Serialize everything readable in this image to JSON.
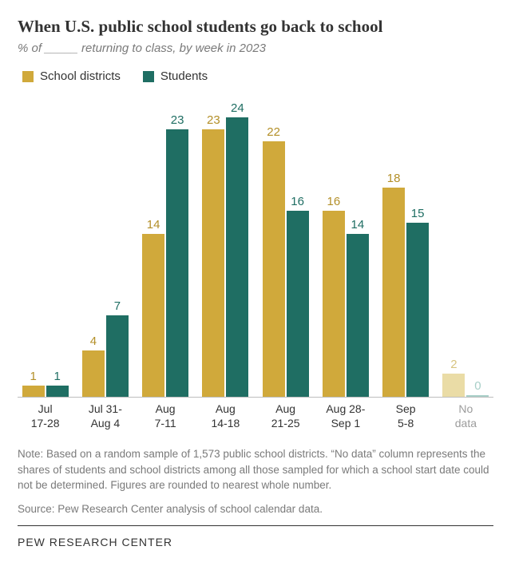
{
  "title": "When U.S. public school students go back to school",
  "subtitle": "% of _____ returning to class, by week in 2023",
  "legend": {
    "series1": {
      "label": "School districts",
      "color": "#d0a93b"
    },
    "series2": {
      "label": "Students",
      "color": "#1f6e63"
    }
  },
  "chart": {
    "type": "bar",
    "ymax": 26,
    "categories": [
      {
        "label_line1": "Jul",
        "label_line2": "17-28",
        "v1": 1,
        "v2": 1,
        "faded": false
      },
      {
        "label_line1": "Jul 31-",
        "label_line2": "Aug 4",
        "v1": 4,
        "v2": 7,
        "faded": false
      },
      {
        "label_line1": "Aug",
        "label_line2": "7-11",
        "v1": 14,
        "v2": 23,
        "faded": false
      },
      {
        "label_line1": "Aug",
        "label_line2": "14-18",
        "v1": 23,
        "v2": 24,
        "faded": false
      },
      {
        "label_line1": "Aug",
        "label_line2": "21-25",
        "v1": 22,
        "v2": 16,
        "faded": false
      },
      {
        "label_line1": "Aug 28-",
        "label_line2": "Sep 1",
        "v1": 16,
        "v2": 14,
        "faded": false
      },
      {
        "label_line1": "Sep",
        "label_line2": "5-8",
        "v1": 18,
        "v2": 15,
        "faded": false
      },
      {
        "label_line1": "No",
        "label_line2": "data",
        "v1": 2,
        "v2": 0,
        "faded": true
      }
    ],
    "colors": {
      "series1": "#d0a93b",
      "series2": "#1f6e63",
      "series1_faded": "#eadca6",
      "series2_faded": "#a8cfc8",
      "label1": "#b38f28",
      "label2": "#1f6e63",
      "label1_faded": "#d7c480",
      "label2_faded": "#a8cfc8",
      "xlabel_faded": "#9c9c9c"
    }
  },
  "note": "Note: Based on a random sample of 1,573 public school districts. “No data” column represents the shares of students and school districts among all those sampled for which a school start date could not be determined. Figures are rounded to nearest whole number.",
  "source": "Source: Pew Research Center analysis of school calendar data.",
  "footer": "PEW RESEARCH CENTER"
}
